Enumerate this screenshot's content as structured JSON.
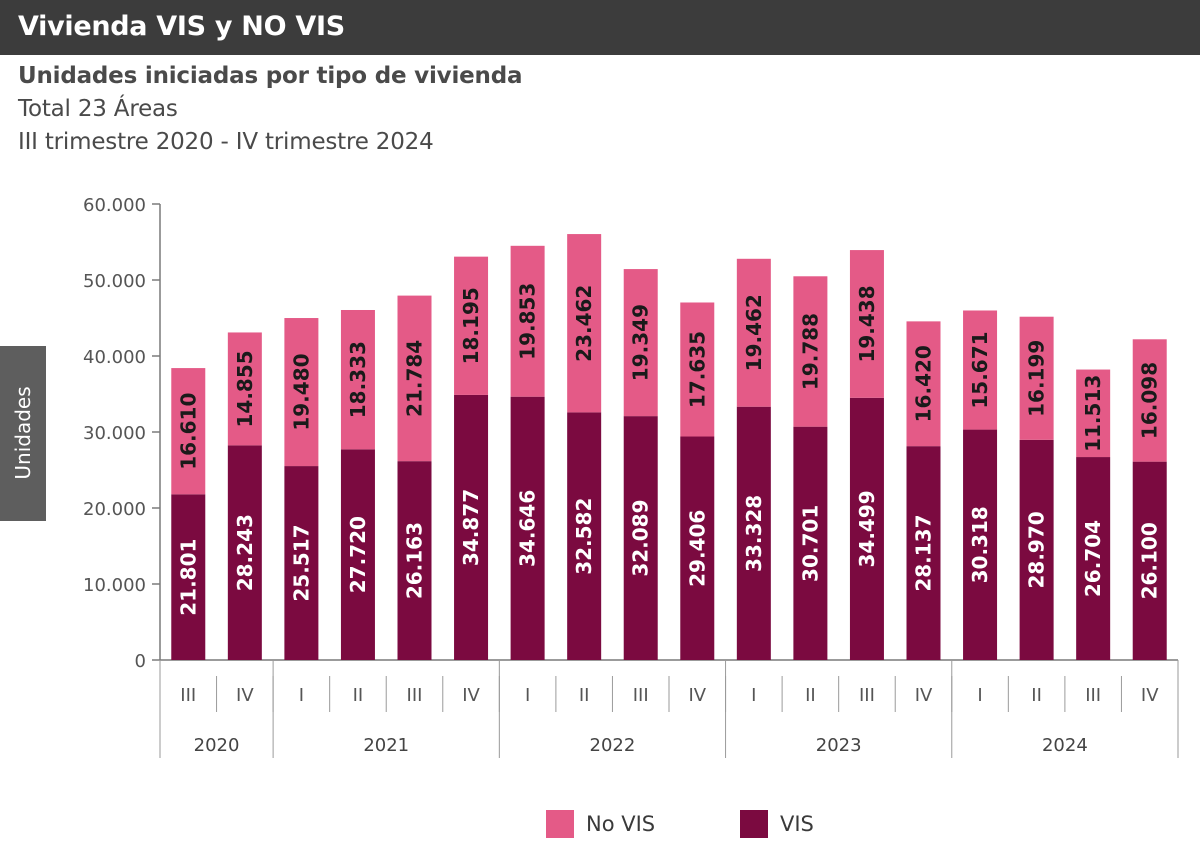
{
  "header": {
    "title": "Vivienda VIS y NO VIS"
  },
  "titles": {
    "main": "Unidades iniciadas por tipo de vivienda",
    "line2": "Total 23 Áreas",
    "line3": "III trimestre 2020 - IV trimestre 2024"
  },
  "colors": {
    "no_vis": "#e45a87",
    "vis": "#7b0a40",
    "header": "#3c3c3c",
    "axis": "#7a7a7a"
  },
  "chart_data": {
    "type": "bar",
    "stacked": true,
    "ylabel": "Unidades",
    "ylim": [
      0,
      60000
    ],
    "yticks": [
      0,
      10000,
      20000,
      30000,
      40000,
      50000,
      60000
    ],
    "ytick_labels": [
      "0",
      "10.000",
      "20.000",
      "30.000",
      "40.000",
      "50.000",
      "60.000"
    ],
    "categories": [
      "III",
      "IV",
      "I",
      "II",
      "III",
      "IV",
      "I",
      "II",
      "III",
      "IV",
      "I",
      "II",
      "III",
      "IV",
      "I",
      "II",
      "III",
      "IV"
    ],
    "years": [
      {
        "label": "2020",
        "count": 2
      },
      {
        "label": "2021",
        "count": 4
      },
      {
        "label": "2022",
        "count": 4
      },
      {
        "label": "2023",
        "count": 4
      },
      {
        "label": "2024",
        "count": 4
      }
    ],
    "series": [
      {
        "name": "VIS",
        "values": [
          21801,
          28243,
          25517,
          27720,
          26163,
          34877,
          34646,
          32582,
          32089,
          29406,
          33328,
          30701,
          34499,
          28137,
          30318,
          28970,
          26704,
          26100
        ],
        "labels": [
          "21.801",
          "28.243",
          "25.517",
          "27.720",
          "26.163",
          "34.877",
          "34.646",
          "32.582",
          "32.089",
          "29.406",
          "33.328",
          "30.701",
          "34.499",
          "28.137",
          "30.318",
          "28.970",
          "26.704",
          "26.100"
        ]
      },
      {
        "name": "No VIS",
        "values": [
          16610,
          14855,
          19480,
          18333,
          21784,
          18195,
          19853,
          23462,
          19349,
          17635,
          19462,
          19788,
          19438,
          16420,
          15671,
          16199,
          11513,
          16098
        ],
        "labels": [
          "16.610",
          "14.855",
          "19.480",
          "18.333",
          "21.784",
          "18.195",
          "19.853",
          "23.462",
          "19.349",
          "17.635",
          "19.462",
          "19.788",
          "19.438",
          "16.420",
          "15.671",
          "16.199",
          "11.513",
          "16.098"
        ]
      }
    ],
    "legend": [
      "No VIS",
      "VIS"
    ]
  }
}
